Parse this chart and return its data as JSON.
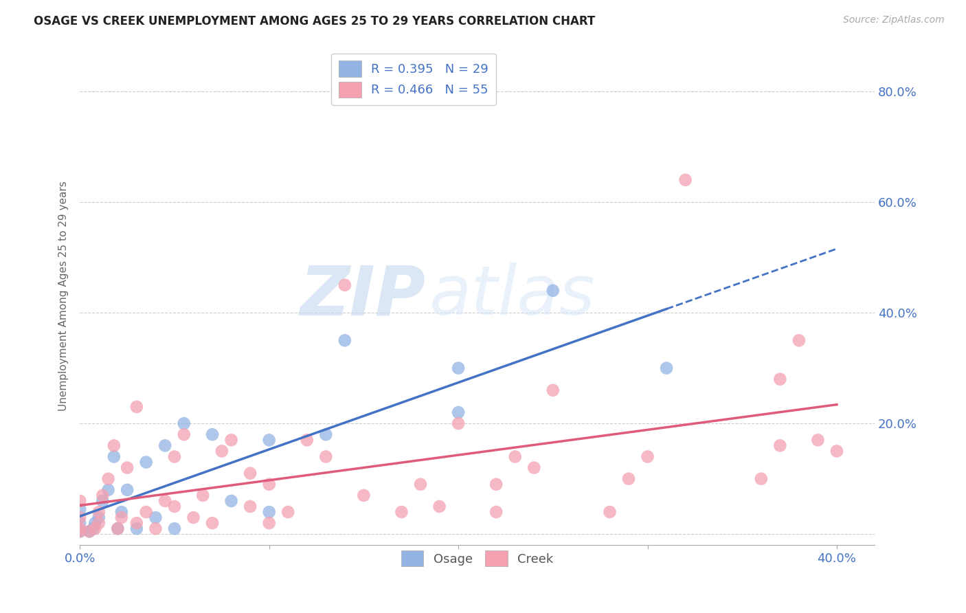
{
  "title": "OSAGE VS CREEK UNEMPLOYMENT AMONG AGES 25 TO 29 YEARS CORRELATION CHART",
  "source": "Source: ZipAtlas.com",
  "ylabel": "Unemployment Among Ages 25 to 29 years",
  "xlim": [
    0.0,
    0.42
  ],
  "ylim": [
    -0.02,
    0.88
  ],
  "xtick_positions": [
    0.0,
    0.1,
    0.2,
    0.3,
    0.4
  ],
  "xticklabels": [
    "0.0%",
    "",
    "",
    "",
    "40.0%"
  ],
  "right_ytick_positions": [
    0.2,
    0.4,
    0.6,
    0.8
  ],
  "right_ytick_labels": [
    "20.0%",
    "40.0%",
    "60.0%",
    "80.0%"
  ],
  "osage_color": "#92b4e3",
  "creek_color": "#f4a0b0",
  "osage_line_color": "#4472c4",
  "creek_line_color": "#e05a7a",
  "osage_line_dash": "--",
  "legend_label_osage": "R = 0.395   N = 29",
  "legend_label_creek": "R = 0.466   N = 55",
  "watermark_zip": "ZIP",
  "watermark_atlas": "atlas",
  "osage_x": [
    0.0,
    0.0,
    0.0,
    0.005,
    0.007,
    0.008,
    0.01,
    0.012,
    0.015,
    0.018,
    0.02,
    0.022,
    0.025,
    0.03,
    0.035,
    0.04,
    0.045,
    0.05,
    0.055,
    0.07,
    0.08,
    0.1,
    0.1,
    0.13,
    0.14,
    0.2,
    0.2,
    0.25,
    0.31
  ],
  "osage_y": [
    0.005,
    0.02,
    0.045,
    0.005,
    0.01,
    0.02,
    0.03,
    0.06,
    0.08,
    0.14,
    0.01,
    0.04,
    0.08,
    0.01,
    0.13,
    0.03,
    0.16,
    0.01,
    0.2,
    0.18,
    0.06,
    0.04,
    0.17,
    0.18,
    0.35,
    0.22,
    0.3,
    0.44,
    0.3
  ],
  "creek_x": [
    0.0,
    0.0,
    0.0,
    0.0,
    0.005,
    0.008,
    0.01,
    0.01,
    0.012,
    0.015,
    0.018,
    0.02,
    0.022,
    0.025,
    0.03,
    0.03,
    0.035,
    0.04,
    0.045,
    0.05,
    0.05,
    0.055,
    0.06,
    0.065,
    0.07,
    0.075,
    0.08,
    0.09,
    0.09,
    0.1,
    0.1,
    0.11,
    0.12,
    0.13,
    0.14,
    0.15,
    0.17,
    0.18,
    0.19,
    0.2,
    0.22,
    0.22,
    0.23,
    0.24,
    0.25,
    0.28,
    0.29,
    0.3,
    0.32,
    0.36,
    0.37,
    0.37,
    0.38,
    0.39,
    0.4
  ],
  "creek_y": [
    0.005,
    0.01,
    0.03,
    0.06,
    0.005,
    0.01,
    0.02,
    0.04,
    0.07,
    0.1,
    0.16,
    0.01,
    0.03,
    0.12,
    0.02,
    0.23,
    0.04,
    0.01,
    0.06,
    0.05,
    0.14,
    0.18,
    0.03,
    0.07,
    0.02,
    0.15,
    0.17,
    0.05,
    0.11,
    0.02,
    0.09,
    0.04,
    0.17,
    0.14,
    0.45,
    0.07,
    0.04,
    0.09,
    0.05,
    0.2,
    0.04,
    0.09,
    0.14,
    0.12,
    0.26,
    0.04,
    0.1,
    0.14,
    0.64,
    0.1,
    0.16,
    0.28,
    0.35,
    0.17,
    0.15
  ],
  "background_color": "#ffffff",
  "grid_color": "#cccccc"
}
